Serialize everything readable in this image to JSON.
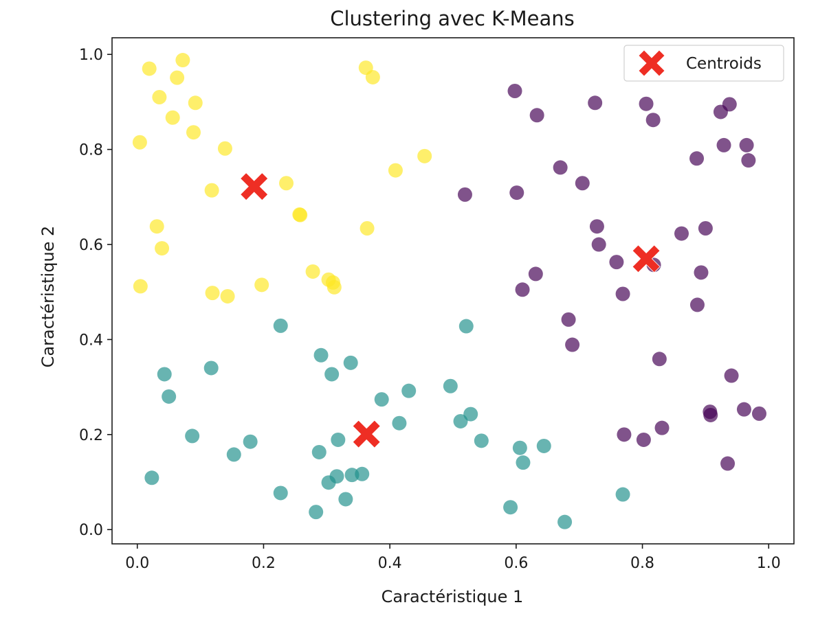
{
  "chart_data": {
    "type": "scatter",
    "title": "Clustering avec K-Means",
    "xlabel": "Caractéristique 1",
    "ylabel": "Caractéristique 2",
    "xlim": [
      -0.04,
      1.04
    ],
    "ylim": [
      -0.03,
      1.035
    ],
    "xticks": [
      "0.0",
      "0.2",
      "0.4",
      "0.6",
      "0.8",
      "1.0"
    ],
    "yticks": [
      "0.0",
      "0.2",
      "0.4",
      "0.6",
      "0.8",
      "1.0"
    ],
    "grid": false,
    "legend_position": "top-right",
    "colors": {
      "cluster_0": "#440154",
      "cluster_1": "#21918c",
      "cluster_2": "#fde725",
      "centroid": "#ee2e24",
      "axes": "#1a1a1a"
    },
    "series": [
      {
        "cluster": 0,
        "points": [
          [
            0.598,
            0.923
          ],
          [
            0.633,
            0.872
          ],
          [
            0.725,
            0.898
          ],
          [
            0.806,
            0.896
          ],
          [
            0.817,
            0.862
          ],
          [
            0.924,
            0.879
          ],
          [
            0.938,
            0.895
          ],
          [
            0.929,
            0.809
          ],
          [
            0.965,
            0.809
          ],
          [
            0.968,
            0.777
          ],
          [
            0.886,
            0.781
          ],
          [
            0.67,
            0.762
          ],
          [
            0.705,
            0.729
          ],
          [
            0.519,
            0.705
          ],
          [
            0.601,
            0.709
          ],
          [
            0.728,
            0.638
          ],
          [
            0.731,
            0.6
          ],
          [
            0.862,
            0.623
          ],
          [
            0.9,
            0.634
          ],
          [
            0.759,
            0.563
          ],
          [
            0.818,
            0.557
          ],
          [
            0.631,
            0.538
          ],
          [
            0.61,
            0.505
          ],
          [
            0.769,
            0.496
          ],
          [
            0.893,
            0.541
          ],
          [
            0.887,
            0.473
          ],
          [
            0.683,
            0.442
          ],
          [
            0.689,
            0.389
          ],
          [
            0.827,
            0.359
          ],
          [
            0.941,
            0.324
          ],
          [
            0.907,
            0.248
          ],
          [
            0.908,
            0.241
          ],
          [
            0.961,
            0.253
          ],
          [
            0.985,
            0.244
          ],
          [
            0.771,
            0.2
          ],
          [
            0.802,
            0.189
          ],
          [
            0.831,
            0.214
          ],
          [
            0.935,
            0.139
          ]
        ]
      },
      {
        "cluster": 1,
        "points": [
          [
            0.227,
            0.429
          ],
          [
            0.521,
            0.428
          ],
          [
            0.291,
            0.367
          ],
          [
            0.308,
            0.327
          ],
          [
            0.338,
            0.351
          ],
          [
            0.117,
            0.34
          ],
          [
            0.043,
            0.327
          ],
          [
            0.05,
            0.28
          ],
          [
            0.387,
            0.274
          ],
          [
            0.43,
            0.292
          ],
          [
            0.496,
            0.302
          ],
          [
            0.512,
            0.228
          ],
          [
            0.528,
            0.243
          ],
          [
            0.415,
            0.224
          ],
          [
            0.087,
            0.197
          ],
          [
            0.179,
            0.185
          ],
          [
            0.153,
            0.158
          ],
          [
            0.288,
            0.163
          ],
          [
            0.318,
            0.189
          ],
          [
            0.545,
            0.187
          ],
          [
            0.606,
            0.172
          ],
          [
            0.644,
            0.176
          ],
          [
            0.611,
            0.141
          ],
          [
            0.023,
            0.109
          ],
          [
            0.316,
            0.112
          ],
          [
            0.34,
            0.115
          ],
          [
            0.356,
            0.117
          ],
          [
            0.303,
            0.099
          ],
          [
            0.227,
            0.077
          ],
          [
            0.33,
            0.064
          ],
          [
            0.283,
            0.037
          ],
          [
            0.591,
            0.047
          ],
          [
            0.769,
            0.074
          ],
          [
            0.677,
            0.016
          ]
        ]
      },
      {
        "cluster": 2,
        "points": [
          [
            0.072,
            0.988
          ],
          [
            0.019,
            0.97
          ],
          [
            0.063,
            0.951
          ],
          [
            0.035,
            0.91
          ],
          [
            0.092,
            0.898
          ],
          [
            0.056,
            0.867
          ],
          [
            0.089,
            0.836
          ],
          [
            0.004,
            0.815
          ],
          [
            0.139,
            0.802
          ],
          [
            0.362,
            0.972
          ],
          [
            0.373,
            0.952
          ],
          [
            0.455,
            0.786
          ],
          [
            0.409,
            0.756
          ],
          [
            0.118,
            0.714
          ],
          [
            0.236,
            0.729
          ],
          [
            0.257,
            0.663
          ],
          [
            0.258,
            0.662
          ],
          [
            0.031,
            0.638
          ],
          [
            0.364,
            0.634
          ],
          [
            0.039,
            0.592
          ],
          [
            0.005,
            0.512
          ],
          [
            0.278,
            0.543
          ],
          [
            0.303,
            0.526
          ],
          [
            0.31,
            0.52
          ],
          [
            0.312,
            0.51
          ],
          [
            0.197,
            0.515
          ],
          [
            0.119,
            0.498
          ],
          [
            0.143,
            0.491
          ]
        ]
      }
    ],
    "centroids": {
      "name": "Centroids",
      "points": [
        [
          0.185,
          0.722
        ],
        [
          0.363,
          0.201
        ],
        [
          0.806,
          0.57
        ]
      ]
    }
  }
}
